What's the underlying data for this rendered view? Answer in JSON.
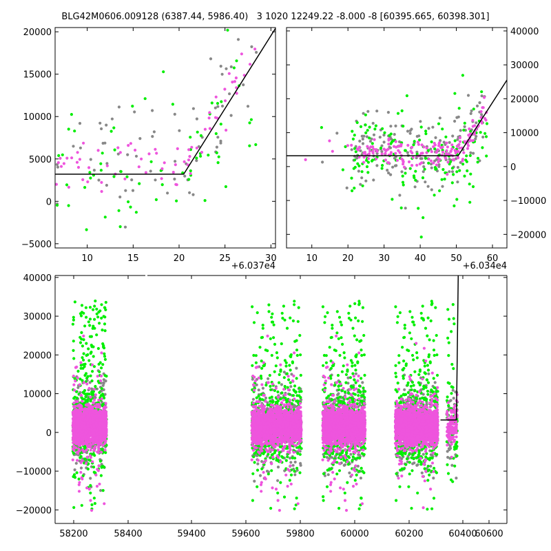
{
  "figure_title": "BLG42M0606.009128 (6387.44, 5986.40)   3 1020 12249.22 -8.000 -8 [60395.665, 60398.301]",
  "colors": {
    "grey": "#888888",
    "green": "#00ee00",
    "magenta": "#ee55dd",
    "model": "#000000"
  },
  "chart_data": [
    {
      "type": "scatter",
      "panel": "top-left",
      "title": "",
      "xlabel": "",
      "ylabel": "",
      "x_offset_label": "+6.037e4",
      "xlim": [
        6.5,
        30.5
      ],
      "ylim": [
        -5500,
        20500
      ],
      "xticks": [
        10,
        15,
        20,
        25,
        30
      ],
      "yticks": [
        -5000,
        0,
        5000,
        10000,
        15000,
        20000
      ],
      "xtick_labels": [
        "10",
        "15",
        "20",
        "25",
        "30"
      ],
      "ytick_labels": [
        "−5000",
        "0",
        "5000",
        "10000",
        "15000",
        "20000"
      ],
      "ytick_side": "left",
      "model_line": {
        "x": [
          6.5,
          20.5,
          30.5
        ],
        "y": [
          3200,
          3200,
          20400
        ]
      }
    },
    {
      "type": "scatter",
      "panel": "top-right",
      "title": "",
      "xlabel": "",
      "ylabel": "",
      "x_offset_label": "+6.034e4",
      "xlim": [
        3,
        64
      ],
      "ylim": [
        -24000,
        41000
      ],
      "xticks": [
        10,
        20,
        30,
        40,
        50,
        60
      ],
      "yticks": [
        -20000,
        -10000,
        0,
        10000,
        20000,
        30000,
        40000
      ],
      "xtick_labels": [
        "10",
        "20",
        "30",
        "40",
        "50",
        "60"
      ],
      "ytick_labels": [
        "−20000",
        "−10000",
        "0",
        "10000",
        "20000",
        "30000",
        "40000"
      ],
      "ytick_side": "right",
      "model_line": {
        "x": [
          3,
          50.5,
          64
        ],
        "y": [
          3200,
          3200,
          25500
        ]
      }
    },
    {
      "type": "scatter",
      "panel": "bottom",
      "title": "",
      "xlabel": "",
      "ylabel": "",
      "xlim": [
        58130,
        60680
      ],
      "ylim": [
        -23500,
        40500
      ],
      "xticks": [
        58200,
        58400,
        59400,
        59600,
        59800,
        60000,
        60200,
        60400,
        60600
      ],
      "yticks": [
        -20000,
        -10000,
        0,
        10000,
        20000,
        30000,
        40000
      ],
      "xtick_labels": [
        "58200",
        "58400",
        "59400",
        "59600",
        "59800",
        "60000",
        "60200",
        "60400",
        "60600"
      ],
      "ytick_labels": [
        "−20000",
        "−10000",
        "0",
        "10000",
        "20000",
        "30000",
        "40000"
      ],
      "ytick_side": "left",
      "seasons": [
        [
          58230,
          58420
        ],
        [
          59240,
          59520
        ],
        [
          59640,
          59880
        ],
        [
          60050,
          60290
        ],
        [
          60340,
          60400
        ]
      ],
      "model_line": {
        "x": [
          60305,
          60395,
          60405
        ],
        "y": [
          3200,
          3200,
          40500
        ]
      }
    }
  ]
}
